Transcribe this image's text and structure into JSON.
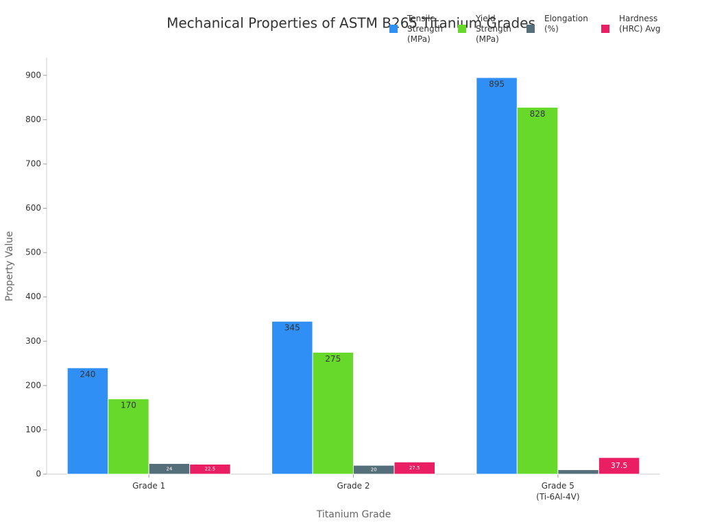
{
  "chart_data": {
    "type": "bar",
    "title": "Mechanical Properties of ASTM B265 Titanium Grades",
    "x_label": "Titanium Grade",
    "y_label": "Property Value",
    "categories": [
      "Grade 1",
      "Grade 2",
      "Grade 5\n(Ti-6Al-4V)"
    ],
    "series": [
      {
        "name": "Tensile Strength (MPa)",
        "color": "#2f8ff5",
        "values": [
          240,
          345,
          895
        ]
      },
      {
        "name": "Yield Strength (MPa)",
        "color": "#66d92a",
        "values": [
          170,
          275,
          828
        ]
      },
      {
        "name": "Elongation (%)",
        "color": "#546e7a",
        "values": [
          24,
          20,
          10
        ]
      },
      {
        "name": "Hardness (HRC) Avg",
        "color": "#e91e63",
        "values": [
          22.5,
          27.5,
          37.5
        ]
      }
    ],
    "ylim": [
      0,
      940
    ],
    "yticks": [
      0,
      100,
      200,
      300,
      400,
      500,
      600,
      700,
      800,
      900
    ],
    "grid": false,
    "legend": "top-right"
  }
}
